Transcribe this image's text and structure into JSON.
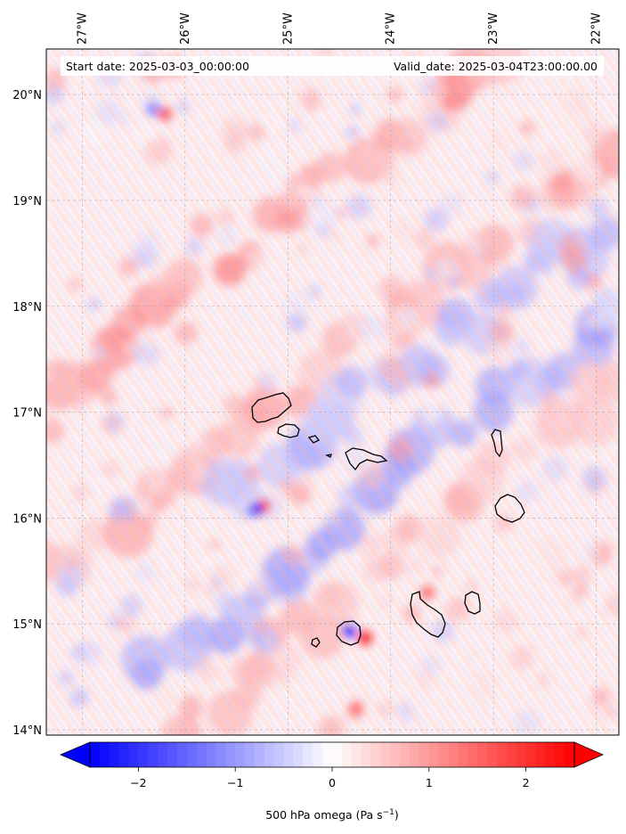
{
  "map": {
    "start_label": "Start date: 2025-03-03_00:00:00",
    "valid_label": "Valid_date: 2025-03-04T23:00:00.00",
    "lon_ticks": [
      "27°W",
      "26°W",
      "25°W",
      "24°W",
      "23°W",
      "22°W"
    ],
    "lat_ticks": [
      "20°N",
      "19°N",
      "18°N",
      "17°N",
      "16°N",
      "15°N",
      "14°N"
    ],
    "lon_values": [
      -27,
      -26,
      -25,
      -24,
      -23,
      -22
    ],
    "lat_values": [
      20,
      19,
      18,
      17,
      16,
      15,
      14
    ],
    "extent": {
      "lon_min": -27.35,
      "lon_max": -21.78,
      "lat_min": 13.95,
      "lat_max": 20.43
    },
    "field": "500 hPa omega",
    "colormap": "bwr",
    "gridlines": true
  },
  "colorbar": {
    "ticks": [
      "−2",
      "−1",
      "0",
      "1",
      "2"
    ],
    "tick_values": [
      -2,
      -1,
      0,
      1,
      2
    ],
    "range": [
      -2.5,
      2.5
    ],
    "label_main": "500 hPa omega (Pa s",
    "label_exp": "−1",
    "label_end": ")",
    "low_color": "#0000ff",
    "mid_color": "#ffffff",
    "high_color": "#ff0000"
  }
}
